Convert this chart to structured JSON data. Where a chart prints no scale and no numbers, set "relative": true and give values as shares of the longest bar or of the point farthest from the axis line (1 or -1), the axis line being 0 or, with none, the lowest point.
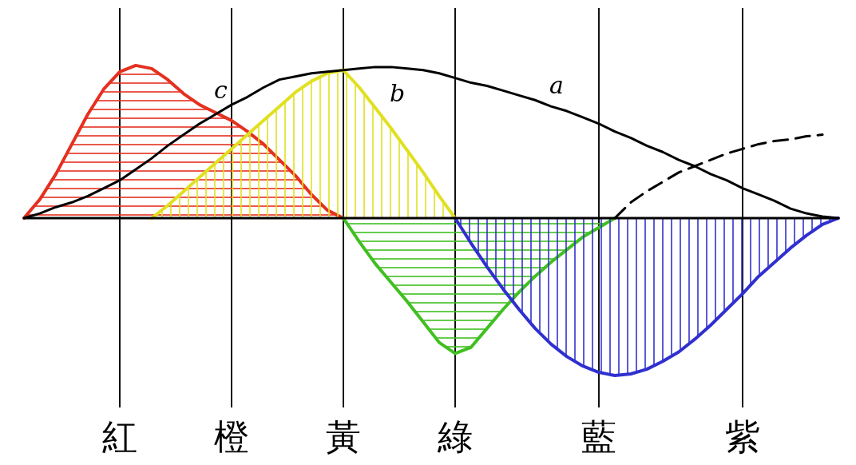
{
  "chart_data": {
    "type": "line",
    "relative": true,
    "grid": "x",
    "categories": [
      null,
      null,
      null,
      null,
      null,
      null,
      "紅",
      null,
      null,
      null,
      null,
      null,
      null,
      "橙",
      null,
      null,
      null,
      null,
      null,
      null,
      "黃",
      null,
      null,
      null,
      null,
      null,
      null,
      "綠",
      null,
      null,
      null,
      null,
      null,
      null,
      null,
      null,
      "藍",
      null,
      null,
      null,
      null,
      null,
      null,
      null,
      null,
      "紫",
      null,
      null,
      null,
      null,
      null,
      null
    ],
    "series": [
      {
        "name": "c",
        "type": "area",
        "color": "#e53020",
        "values": [
          0,
          0.12,
          0.28,
          0.47,
          0.66,
          0.82,
          0.93,
          0.97,
          0.95,
          0.88,
          0.79,
          0.72,
          0.67,
          0.62,
          0.55,
          0.47,
          0.37,
          0.27,
          0.15,
          0.05,
          0,
          null,
          null,
          null,
          null,
          null,
          null,
          null,
          null,
          null,
          null,
          null,
          null,
          null,
          null,
          null,
          null,
          null,
          null,
          null,
          null,
          null,
          null,
          null,
          null,
          null,
          null,
          null,
          null,
          null,
          null,
          null
        ]
      },
      {
        "type": "area",
        "color": "#40c020",
        "values": [
          null,
          null,
          null,
          null,
          null,
          null,
          null,
          null,
          null,
          null,
          null,
          null,
          null,
          null,
          null,
          null,
          null,
          null,
          null,
          null,
          0,
          -0.15,
          -0.29,
          -0.41,
          -0.53,
          -0.66,
          -0.79,
          -0.86,
          -0.82,
          -0.7,
          -0.58,
          -0.47,
          -0.37,
          -0.28,
          -0.2,
          -0.12,
          -0.06,
          0,
          null,
          null,
          null,
          null,
          null,
          null,
          null,
          null,
          null,
          null,
          null,
          null,
          null,
          null
        ]
      },
      {
        "type": "line",
        "line_style": "dashed",
        "color": "#000000",
        "values": [
          null,
          null,
          null,
          null,
          null,
          null,
          null,
          null,
          null,
          null,
          null,
          null,
          null,
          null,
          null,
          null,
          null,
          null,
          null,
          null,
          null,
          null,
          null,
          null,
          null,
          null,
          null,
          null,
          null,
          null,
          null,
          null,
          null,
          null,
          null,
          null,
          null,
          0,
          0.1,
          0.17,
          0.23,
          0.29,
          0.33,
          0.37,
          0.41,
          0.44,
          0.47,
          0.49,
          0.5,
          0.52,
          0.53,
          null
        ]
      },
      {
        "name": "b",
        "type": "area",
        "color": "#e0e020",
        "values": [
          null,
          null,
          null,
          null,
          null,
          null,
          null,
          null,
          0,
          0.08,
          0.17,
          0.26,
          0.35,
          0.44,
          0.53,
          0.62,
          0.71,
          0.8,
          0.87,
          0.92,
          0.94,
          0.83,
          0.7,
          0.57,
          0.43,
          0.29,
          0.14,
          0,
          null,
          null,
          null,
          null,
          null,
          null,
          null,
          null,
          null,
          null,
          null,
          null,
          null,
          null,
          null,
          null,
          null,
          null,
          null,
          null,
          null,
          null,
          null,
          null
        ]
      },
      {
        "type": "area",
        "color": "#3030d0",
        "values": [
          null,
          null,
          null,
          null,
          null,
          null,
          null,
          null,
          null,
          null,
          null,
          null,
          null,
          null,
          null,
          null,
          null,
          null,
          null,
          null,
          null,
          null,
          null,
          null,
          null,
          null,
          null,
          0,
          -0.16,
          -0.31,
          -0.45,
          -0.58,
          -0.7,
          -0.8,
          -0.88,
          -0.94,
          -0.98,
          -1,
          -0.99,
          -0.96,
          -0.91,
          -0.85,
          -0.77,
          -0.68,
          -0.58,
          -0.48,
          -0.37,
          -0.28,
          -0.19,
          -0.11,
          -0.04,
          0
        ]
      },
      {
        "name": "a",
        "color": "#000000",
        "values": [
          0,
          0.03,
          0.07,
          0.1,
          0.14,
          0.19,
          0.24,
          0.31,
          0.38,
          0.46,
          0.53,
          0.6,
          0.66,
          0.72,
          0.77,
          0.83,
          0.88,
          0.9,
          0.92,
          0.93,
          0.94,
          0.95,
          0.96,
          0.96,
          0.95,
          0.94,
          0.92,
          0.89,
          0.86,
          0.84,
          0.81,
          0.78,
          0.75,
          0.71,
          0.68,
          0.64,
          0.6,
          0.55,
          0.51,
          0.46,
          0.42,
          0.37,
          0.33,
          0.28,
          0.24,
          0.19,
          0.15,
          0.11,
          0.06,
          0.03,
          0.01,
          0
        ]
      }
    ]
  }
}
